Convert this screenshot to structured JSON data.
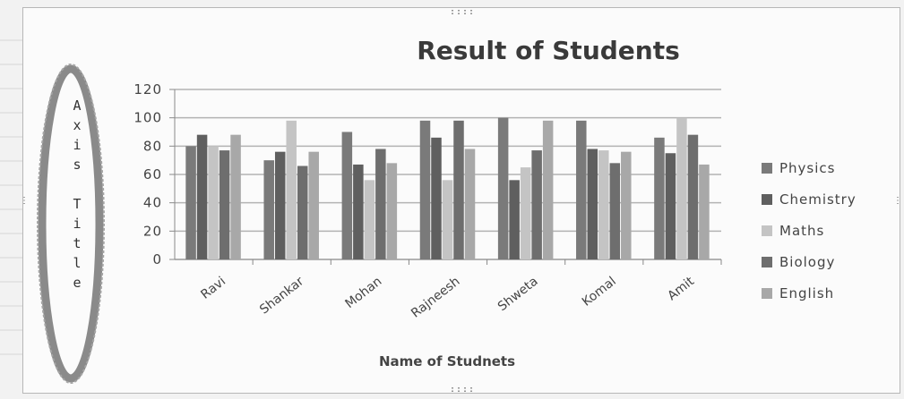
{
  "chart_data": {
    "type": "bar",
    "title": "Result of Students",
    "xlabel": "Name of Studnets",
    "ylabel": "Axis Title",
    "ylim": [
      0,
      120
    ],
    "yticks": [
      0,
      20,
      40,
      60,
      80,
      100,
      120
    ],
    "grid": true,
    "legend": "right",
    "categories": [
      "Ravi",
      "Shankar",
      "Mohan",
      "Rajneesh",
      "Shweta",
      "Komal",
      "Amit"
    ],
    "series": [
      {
        "name": "Physics",
        "color": "#7a7a7a",
        "values": [
          80,
          70,
          90,
          98,
          100,
          98,
          86
        ]
      },
      {
        "name": "Chemistry",
        "color": "#5f5f5f",
        "values": [
          88,
          76,
          67,
          86,
          56,
          78,
          75
        ]
      },
      {
        "name": "Maths",
        "color": "#c4c4c4",
        "values": [
          80,
          98,
          56,
          56,
          65,
          77,
          100
        ]
      },
      {
        "name": "Biology",
        "color": "#6e6e6e",
        "values": [
          77,
          66,
          78,
          98,
          77,
          68,
          88
        ]
      },
      {
        "name": "English",
        "color": "#a8a8a8",
        "values": [
          88,
          76,
          68,
          78,
          98,
          76,
          67
        ]
      }
    ]
  }
}
